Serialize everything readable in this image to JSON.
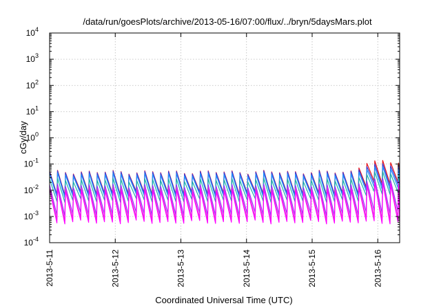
{
  "chart_data": {
    "type": "line",
    "title": "/data/run/goesPlots/archive/2013-05-16/07:00/flux/../bryn/5daysMars.plot",
    "xlabel": "Coordinated Universal Time (UTC)",
    "ylabel": "cGy/day",
    "yscale": "log",
    "ylim": [
      0.0001,
      10000
    ],
    "xlim": [
      "2013-05-11",
      "2013-05-16 08:00"
    ],
    "grid": true,
    "x_ticks": [
      "2013-5-11",
      "2013-5-12",
      "2013-5-13",
      "2013-5-14",
      "2013-5-15",
      "2013-5-16"
    ],
    "y_ticks": [
      {
        "base": "10",
        "exp": "-4"
      },
      {
        "base": "10",
        "exp": "-3"
      },
      {
        "base": "10",
        "exp": "-2"
      },
      {
        "base": "10",
        "exp": "-1"
      },
      {
        "base": "10",
        "exp": "0"
      },
      {
        "base": "10",
        "exp": "1"
      },
      {
        "base": "10",
        "exp": "2"
      },
      {
        "base": "10",
        "exp": "3"
      },
      {
        "base": "10",
        "exp": "4"
      }
    ],
    "sawtooth_period_hours": 2.9,
    "series": [
      {
        "color": "#e8141b",
        "peak": 0.05,
        "trough": 0.0075,
        "peak_late": 0.12,
        "trough_late": 0.02
      },
      {
        "color": "#3b3bd6",
        "peak": 0.048,
        "trough": 0.007,
        "peak_late": 0.09,
        "trough_late": 0.016
      },
      {
        "color": "#1e90ff",
        "peak": 0.04,
        "trough": 0.006,
        "peak_late": 0.07,
        "trough_late": 0.012
      },
      {
        "color": "#20b2aa",
        "peak": 0.025,
        "trough": 0.004,
        "peak_late": 0.045,
        "trough_late": 0.008
      },
      {
        "color": "#9b30ff",
        "peak": 0.015,
        "trough": 0.0012,
        "peak_late": 0.025,
        "trough_late": 0.0015
      },
      {
        "color": "#e83ad7",
        "peak": 0.012,
        "trough": 0.0008,
        "peak_late": 0.02,
        "trough_late": 0.0009
      },
      {
        "color": "#ff00ff",
        "peak": 0.01,
        "trough": 0.0006,
        "peak_late": 0.018,
        "trough_late": 0.0006
      }
    ]
  }
}
